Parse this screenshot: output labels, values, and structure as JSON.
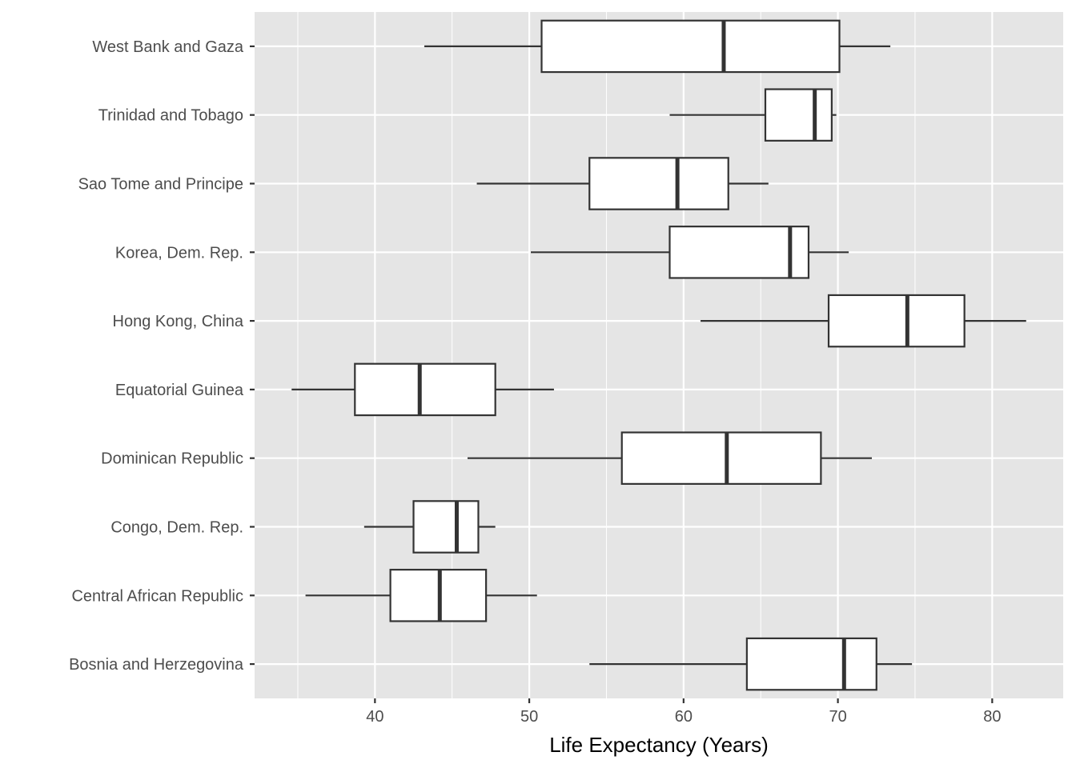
{
  "chart_data": {
    "type": "boxplot",
    "orientation": "horizontal",
    "title": "",
    "xlabel": "Life Expectancy (Years)",
    "ylabel": "",
    "xlim": [
      32.2,
      84.6
    ],
    "xticks": [
      40,
      50,
      60,
      70,
      80
    ],
    "grid": true,
    "panel_background": "#e5e5e5",
    "grid_color": "#ffffff",
    "box_fill": "#ffffff",
    "box_stroke": "#333333",
    "categories": [
      "Bosnia and Herzegovina",
      "Central African Republic",
      "Congo, Dem. Rep.",
      "Dominican Republic",
      "Equatorial Guinea",
      "Hong Kong, China",
      "Korea, Dem. Rep.",
      "Sao Tome and Principe",
      "Trinidad and Tobago",
      "West Bank and Gaza"
    ],
    "boxes": [
      {
        "category": "Bosnia and Herzegovina",
        "min": 53.9,
        "q1": 64.1,
        "median": 70.4,
        "q3": 72.5,
        "max": 74.8
      },
      {
        "category": "Central African Republic",
        "min": 35.5,
        "q1": 41.0,
        "median": 44.2,
        "q3": 47.2,
        "max": 50.5
      },
      {
        "category": "Congo, Dem. Rep.",
        "min": 39.3,
        "q1": 42.5,
        "median": 45.3,
        "q3": 46.7,
        "max": 47.8
      },
      {
        "category": "Dominican Republic",
        "min": 46.0,
        "q1": 56.0,
        "median": 62.8,
        "q3": 68.9,
        "max": 72.2
      },
      {
        "category": "Equatorial Guinea",
        "min": 34.6,
        "q1": 38.7,
        "median": 42.9,
        "q3": 47.8,
        "max": 51.6
      },
      {
        "category": "Hong Kong, China",
        "min": 61.1,
        "q1": 69.4,
        "median": 74.5,
        "q3": 78.2,
        "max": 82.2
      },
      {
        "category": "Korea, Dem. Rep.",
        "min": 50.1,
        "q1": 59.1,
        "median": 66.9,
        "q3": 68.1,
        "max": 70.7
      },
      {
        "category": "Sao Tome and Principe",
        "min": 46.6,
        "q1": 53.9,
        "median": 59.6,
        "q3": 62.9,
        "max": 65.5
      },
      {
        "category": "Trinidad and Tobago",
        "min": 59.1,
        "q1": 65.3,
        "median": 68.5,
        "q3": 69.6,
        "max": 69.9
      },
      {
        "category": "West Bank and Gaza",
        "min": 43.2,
        "q1": 50.8,
        "median": 62.6,
        "q3": 70.1,
        "max": 73.4
      }
    ]
  }
}
